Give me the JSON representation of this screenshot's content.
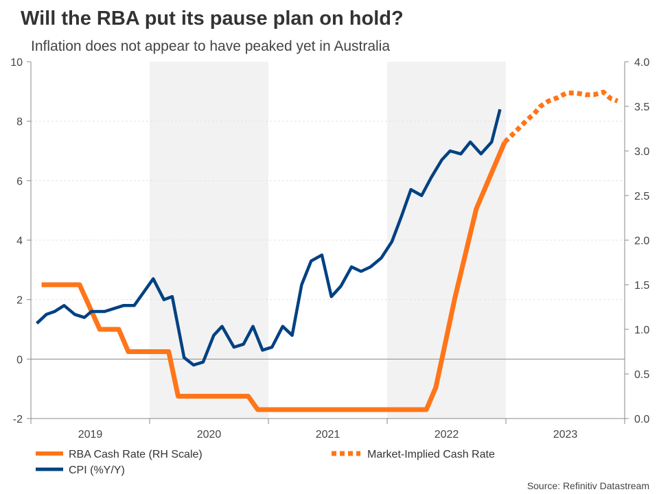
{
  "chart_data": {
    "type": "line",
    "title": "Will the RBA put its pause plan on hold?",
    "subtitle": "Inflation does not appear to have peaked yet in Australia",
    "source": "Source: Refinitiv Datastream",
    "x_categories": [
      "2019",
      "2020",
      "2021",
      "2022",
      "2023"
    ],
    "xlim": [
      2019,
      2024
    ],
    "shaded_years": [
      2020,
      2022
    ],
    "y_left": {
      "lim": [
        -2,
        10
      ],
      "ticks": [
        10,
        8,
        6,
        4,
        2,
        0,
        -2
      ],
      "tick_labels": [
        "10",
        "8",
        "6",
        "4",
        "2",
        "0",
        "-2"
      ]
    },
    "y_right": {
      "lim": [
        0,
        4
      ],
      "ticks": [
        4,
        3.5,
        3,
        2.5,
        2,
        1.5,
        1,
        0.5,
        0
      ],
      "tick_labels": [
        "4.0",
        "3.5",
        "3.0",
        "2.5",
        "2.0",
        "1.5",
        "1.0",
        "0.5",
        "0.0"
      ]
    },
    "grid": "horizontal dashed",
    "legend_position": "bottom",
    "colors": {
      "orange": "#ff7519",
      "blue": "#004182",
      "shade": "#f2f2f2"
    },
    "series": [
      {
        "name": "RBA Cash Rate (RH Scale)",
        "axis": "right",
        "style": "solid",
        "color": "#ff7519",
        "x": [
          2019.09,
          2019.41,
          2019.58,
          2019.74,
          2019.82,
          2020.16,
          2020.24,
          2020.83,
          2020.91,
          2022.33,
          2022.41,
          2022.49,
          2022.57,
          2022.66,
          2022.75,
          2022.83,
          2022.91,
          2022.99
        ],
        "y": [
          1.5,
          1.5,
          1.0,
          1.0,
          0.75,
          0.75,
          0.25,
          0.25,
          0.1,
          0.1,
          0.35,
          0.85,
          1.35,
          1.85,
          2.35,
          2.6,
          2.85,
          3.1
        ]
      },
      {
        "name": "Market-Implied Cash Rate",
        "axis": "right",
        "style": "dotted",
        "color": "#ff7519",
        "x": [
          2022.99,
          2023.06,
          2023.12,
          2023.18,
          2023.24,
          2023.29,
          2023.36,
          2023.44,
          2023.51,
          2023.59,
          2023.67,
          2023.74,
          2023.82,
          2023.88,
          2023.94
        ],
        "y": [
          3.1,
          3.19,
          3.27,
          3.35,
          3.42,
          3.5,
          3.56,
          3.6,
          3.65,
          3.65,
          3.63,
          3.63,
          3.66,
          3.59,
          3.56
        ]
      },
      {
        "name": "CPI (%Y/Y)",
        "axis": "left",
        "style": "solid",
        "color": "#004182",
        "x": [
          2019.05,
          2019.13,
          2019.2,
          2019.28,
          2019.37,
          2019.45,
          2019.51,
          2019.62,
          2019.78,
          2019.87,
          2020.03,
          2020.12,
          2020.19,
          2020.29,
          2020.37,
          2020.45,
          2020.54,
          2020.61,
          2020.71,
          2020.79,
          2020.87,
          2020.95,
          2021.03,
          2021.12,
          2021.2,
          2021.28,
          2021.36,
          2021.45,
          2021.53,
          2021.61,
          2021.7,
          2021.78,
          2021.86,
          2021.95,
          2022.04,
          2022.12,
          2022.2,
          2022.29,
          2022.37,
          2022.46,
          2022.53,
          2022.62,
          2022.7,
          2022.79,
          2022.88,
          2022.95
        ],
        "y": [
          1.2,
          1.5,
          1.6,
          1.8,
          1.5,
          1.4,
          1.6,
          1.6,
          1.8,
          1.8,
          2.7,
          2.0,
          2.1,
          0.05,
          -0.2,
          -0.1,
          0.8,
          1.1,
          0.4,
          0.5,
          1.1,
          0.3,
          0.4,
          1.1,
          0.8,
          2.5,
          3.3,
          3.5,
          2.1,
          2.45,
          3.1,
          2.95,
          3.1,
          3.4,
          3.95,
          4.8,
          5.7,
          5.5,
          6.1,
          6.7,
          7.0,
          6.9,
          7.3,
          6.9,
          7.3,
          8.4
        ]
      }
    ]
  }
}
